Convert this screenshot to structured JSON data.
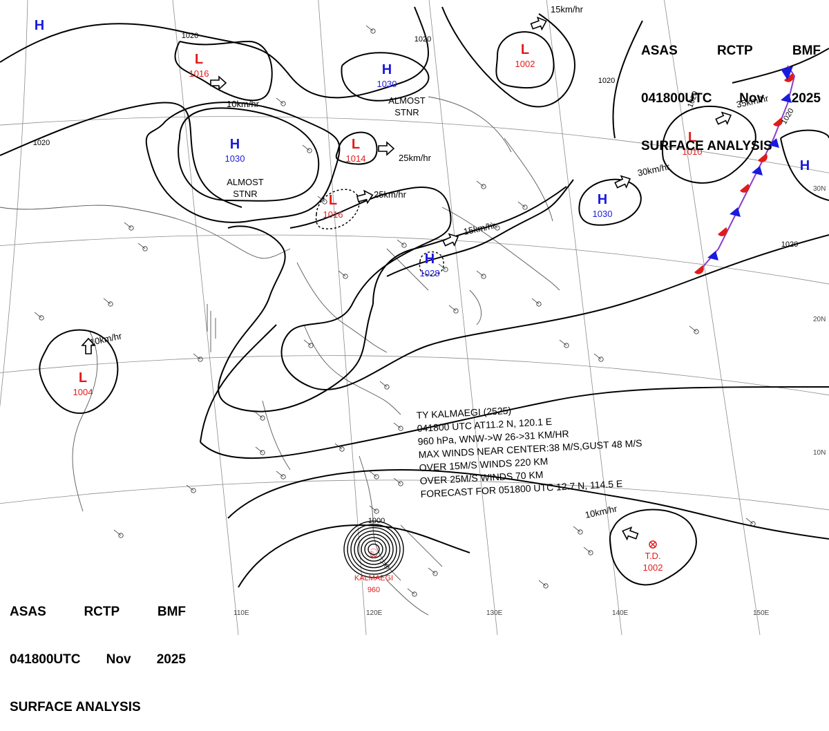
{
  "header": {
    "line1": [
      "ASAS",
      "RCTP",
      "BMF"
    ],
    "line2": [
      "041800UTC",
      "Nov",
      "2025"
    ],
    "line3": "SURFACE ANALYSIS"
  },
  "pressure_systems": [
    {
      "type": "H",
      "value": ""
    },
    {
      "type": "L",
      "value": "1016"
    },
    {
      "type": "H",
      "value": "1030"
    },
    {
      "type": "H",
      "value": "1030"
    },
    {
      "type": "L",
      "value": "1014"
    },
    {
      "type": "L",
      "value": "1016"
    },
    {
      "type": "L",
      "value": "1002"
    },
    {
      "type": "L",
      "value": "1010"
    },
    {
      "type": "H",
      "value": ""
    },
    {
      "type": "H",
      "value": "1030"
    },
    {
      "type": "H",
      "value": "1028"
    },
    {
      "type": "L",
      "value": "1004"
    },
    {
      "type": "TD",
      "label": "T.D.",
      "value": "1002"
    },
    {
      "type": "TY",
      "label": "KALMAEGI",
      "value": "960"
    }
  ],
  "motion_labels": [
    "10km/hr",
    "25km/hr",
    "25km/hr",
    "15km/hr",
    "15km/hr",
    "30km/hr",
    "35km/hr",
    "10km/hr",
    "10km/hr"
  ],
  "text_notes": [
    "ALMOST\nSTNR",
    "ALMOST\nSTNR"
  ],
  "isobar_labels": [
    "1020",
    "1020",
    "1020",
    "1020",
    "1020",
    "1020",
    "1020",
    "1000"
  ],
  "typhoon_box": {
    "lines": [
      "TY  KALMAEGI  (2525)",
      "041800 UTC   AT11.2 N, 120.1 E",
      "960 hPa, WNW->W  26->31 KM/HR",
      "MAX WINDS NEAR CENTER:38 M/S,GUST 48 M/S",
      "OVER 15M/S WINDS  220 KM",
      "OVER 25M/S WINDS  70 KM",
      "FORECAST FOR 051800 UTC 12.7 N, 114.5 E"
    ]
  },
  "lat_labels": [
    "30N",
    "20N",
    "10N"
  ],
  "lon_labels": [
    "110E",
    "120E",
    "130E",
    "140E",
    "150E"
  ],
  "colors": {
    "high": "#1a1adf",
    "low": "#e01b1b",
    "isobar": "#000000",
    "grid": "#8a8a8a",
    "coast": "#555555",
    "warm_front": "#e01b1b",
    "cold_front": "#1a1adf"
  }
}
